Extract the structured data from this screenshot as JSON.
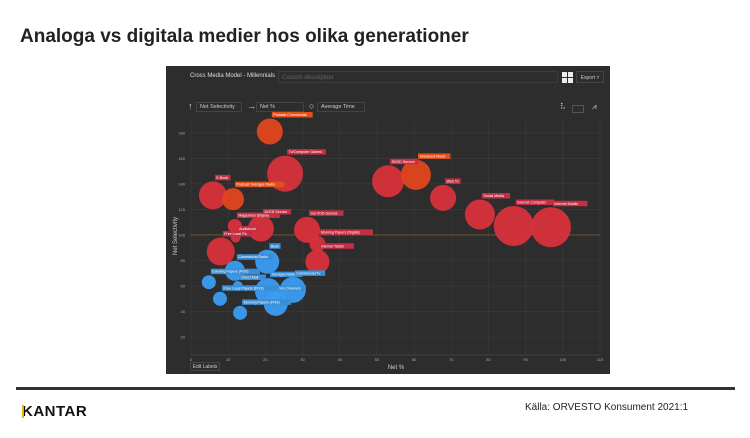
{
  "page_title": "Analoga vs digitala medier hos olika generationer",
  "panel": {
    "title": "Cross Media Model - Millennials",
    "description_placeholder": "Custom description",
    "export_label": "Export ˅",
    "y_metric": "Net Selectivity",
    "x_metric": "Net %",
    "size_metric": "Average Time",
    "edit_labels": "Edit Labels"
  },
  "colors": {
    "red": "#d8323c",
    "orange": "#e0461e",
    "blue": "#3b9cf2",
    "label_red": "#c42f45",
    "label_orange": "#e2501c",
    "label_blue": "#3a8ed6"
  },
  "chart_data": {
    "type": "scatter",
    "xlabel": "Net %",
    "ylabel": "Net Selectivity",
    "xlim": [
      0,
      110
    ],
    "ylim": [
      6,
      190
    ],
    "xticks": [
      0,
      10,
      20,
      30,
      40,
      50,
      60,
      70,
      80,
      90,
      100,
      110
    ],
    "yticks": [
      20,
      40,
      60,
      80,
      100,
      120,
      140,
      160,
      180
    ],
    "reference_line_y": 100,
    "points": [
      {
        "label": "Podcast Commercial",
        "x": 21.2,
        "y": 181,
        "size": 13,
        "group": "orange"
      },
      {
        "label": "Tv/Computer Games",
        "x": 25.3,
        "y": 148,
        "size": 18,
        "group": "red"
      },
      {
        "label": "E-Book",
        "x": 5.9,
        "y": 131,
        "size": 14,
        "group": "red"
      },
      {
        "label": "Podcast Sveriges Radio",
        "x": 11.3,
        "y": 128,
        "size": 11,
        "group": "orange"
      },
      {
        "label": "Magazines (Digital)",
        "x": 11.8,
        "y": 107,
        "size": 7,
        "group": "red"
      },
      {
        "label": "AVOD Service",
        "x": 18.8,
        "y": 105,
        "size": 13,
        "group": "red"
      },
      {
        "label": "Sol VOD-Service",
        "x": 31.2,
        "y": 104,
        "size": 13,
        "group": "red"
      },
      {
        "label": "Morning Papers (Digital)",
        "x": 34,
        "y": 93,
        "size": 8,
        "group": "red"
      },
      {
        "label": "Free Local Pa",
        "x": 8,
        "y": 87,
        "size": 14,
        "group": "red"
      },
      {
        "label": "Audiobook",
        "x": 12,
        "y": 98,
        "size": 5,
        "group": "red"
      },
      {
        "label": "Internet Tablet",
        "x": 34,
        "y": 79,
        "size": 12,
        "group": "red"
      },
      {
        "label": "SVOD Service",
        "x": 53,
        "y": 142,
        "size": 16,
        "group": "red"
      },
      {
        "label": "Streamed Music",
        "x": 60.5,
        "y": 147,
        "size": 15,
        "group": "orange"
      },
      {
        "label": "Web Tv",
        "x": 67.8,
        "y": 129,
        "size": 13,
        "group": "red"
      },
      {
        "label": "Social Media",
        "x": 77.7,
        "y": 116,
        "size": 15,
        "group": "red"
      },
      {
        "label": "Internet Computer",
        "x": 86.8,
        "y": 107,
        "size": 20,
        "group": "red"
      },
      {
        "label": "Internet Mobile",
        "x": 96.8,
        "y": 106,
        "size": 20,
        "group": "red"
      },
      {
        "label": "Book",
        "x": 20.5,
        "y": 79,
        "size": 12,
        "group": "blue"
      },
      {
        "label": "Commercial Radio",
        "x": 11.8,
        "y": 72,
        "size": 10,
        "group": "blue"
      },
      {
        "label": "Evening Papers (Print)",
        "x": 4.8,
        "y": 63,
        "size": 7,
        "group": "blue"
      },
      {
        "label": "Direct Mail",
        "x": 12.6,
        "y": 60,
        "size": 5,
        "group": "blue"
      },
      {
        "label": "Free Local Papers (Print)",
        "x": 7.8,
        "y": 50,
        "size": 7,
        "group": "blue"
      },
      {
        "label": "Sveriges Radio",
        "x": 20.7,
        "y": 56,
        "size": 13,
        "group": "blue"
      },
      {
        "label": "Commercial Tv",
        "x": 27.4,
        "y": 57,
        "size": 13,
        "group": "blue"
      },
      {
        "label": "Sol Channels",
        "x": 22.8,
        "y": 46,
        "size": 12,
        "group": "blue"
      },
      {
        "label": "Morning Papers (Print)",
        "x": 13.2,
        "y": 39,
        "size": 7,
        "group": "blue"
      }
    ]
  },
  "footer": {
    "logo": "KANTAR",
    "source": "Källa: ORVESTO Konsument 2021:1"
  }
}
